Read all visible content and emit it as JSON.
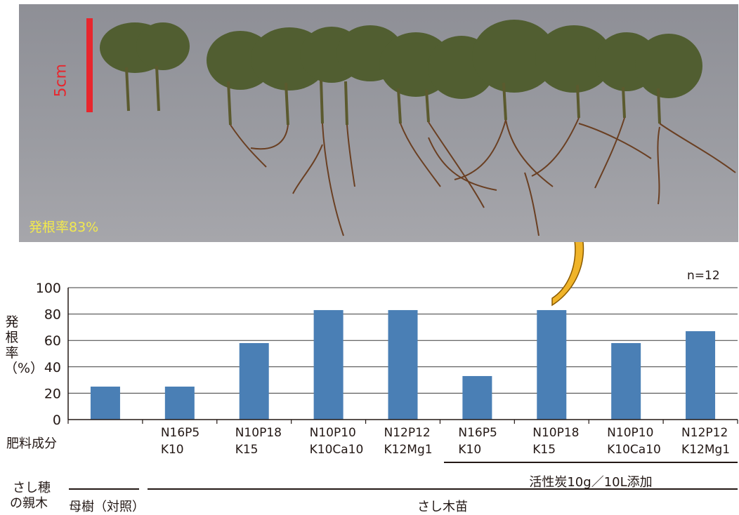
{
  "photo": {
    "scale_label": "5cm",
    "caption": "発根率83%"
  },
  "chart_data": {
    "type": "bar",
    "ylabel": "発根率（%）",
    "xlabel": "肥料成分",
    "note": "n=12",
    "ylim": [
      0,
      100
    ],
    "yticks": [
      0,
      20,
      40,
      60,
      80,
      100
    ],
    "grid": true,
    "bar_color": "#4a7fb5",
    "categories": [
      [
        "",
        ""
      ],
      [
        "N16P5",
        "K10"
      ],
      [
        "N10P18",
        "K15"
      ],
      [
        "N10P10",
        "K10Ca10"
      ],
      [
        "N12P12",
        "K12Mg1"
      ],
      [
        "N16P5",
        "K10"
      ],
      [
        "N10P18",
        "K15"
      ],
      [
        "N10P10",
        "K10Ca10"
      ],
      [
        "N12P12",
        "K12Mg1"
      ]
    ],
    "values": [
      25,
      25,
      58,
      83,
      83,
      33,
      83,
      58,
      67
    ],
    "group_label": "活性炭10g／10L添加",
    "parent_title": [
      "さし穂",
      "の親木"
    ],
    "parent_groups": [
      "母樹（対照）",
      "さし木苗"
    ]
  },
  "colors": {
    "scale_bar": "#e8262d",
    "caption": "#f2e94e",
    "arrow": "#f0b429"
  }
}
